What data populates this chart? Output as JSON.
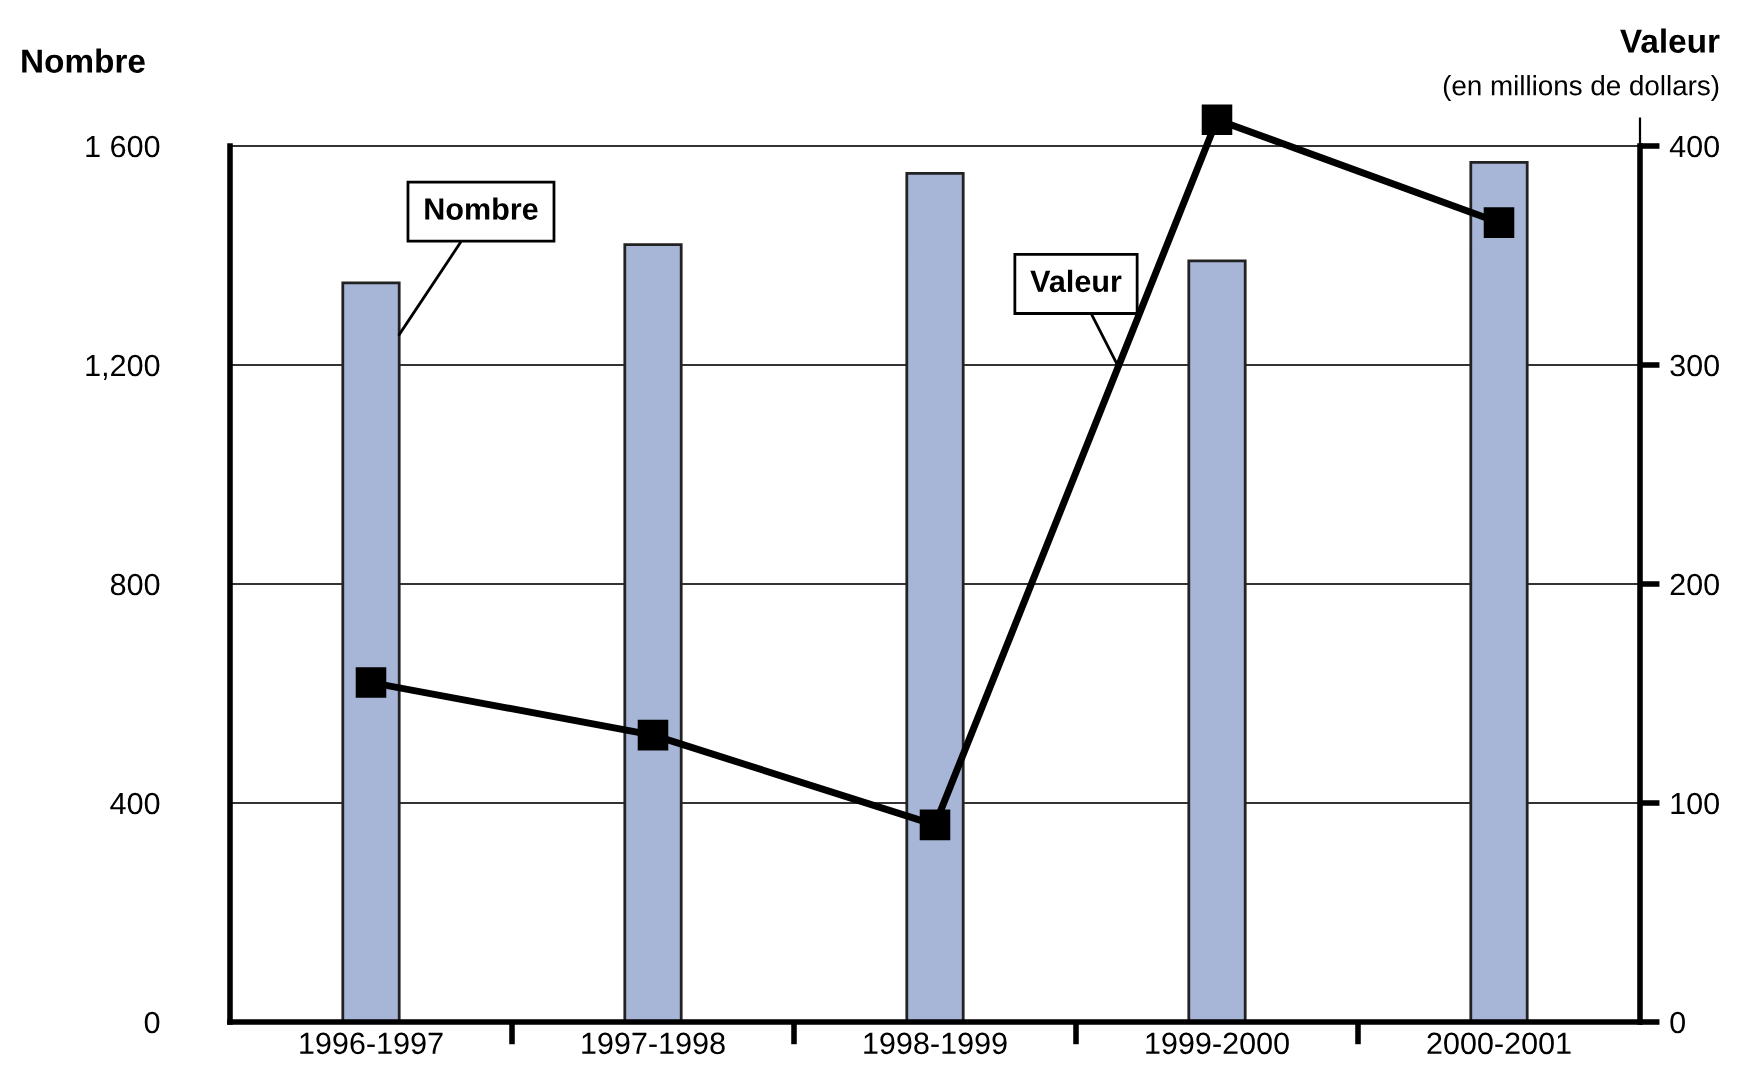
{
  "chart_data": {
    "type": "bar",
    "categories": [
      "1996-1997",
      "1997-1998",
      "1998-1999",
      "1999-2000",
      "2000-2001"
    ],
    "ylabel": "Nombre",
    "y2label": "Valeur",
    "annotations": [
      "(en millions de dollars)"
    ],
    "series": [
      {
        "name": "Nombre",
        "color": "#a7b5d6",
        "values": [
          1350,
          1420,
          1550,
          1390,
          1570
        ]
      },
      {
        "name": "Valeur",
        "type": "line",
        "axis": "y2",
        "color": "#000000",
        "marker": "square",
        "line_style": "solid",
        "values": [
          155,
          131,
          90,
          412,
          365
        ]
      }
    ],
    "ylim": [
      0,
      1650
    ],
    "yticks": [
      0,
      400,
      800,
      {
        "value": 1200,
        "label": "1,200"
      },
      {
        "value": 1600,
        "label": "1 600"
      }
    ],
    "y2lim": [
      0,
      412.5
    ],
    "y2ticks": [
      0,
      100,
      200,
      300,
      400
    ],
    "grid": "y",
    "legend": false
  }
}
